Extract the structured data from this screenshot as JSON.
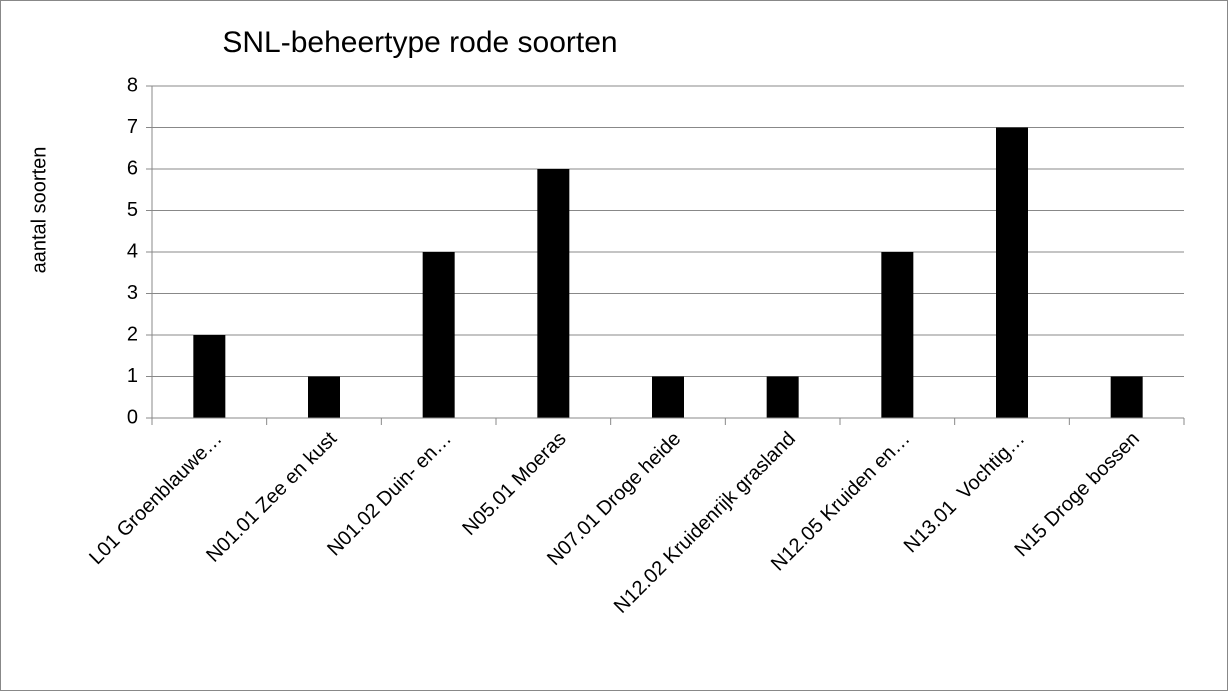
{
  "chart_data": {
    "type": "bar",
    "title": "SNL-beheertype rode soorten",
    "y_label": "aantal soorten",
    "categories": [
      "L01 Groenblauwe…",
      "N01.01 Zee en kust",
      "N01.02 Duin- en…",
      "N05.01 Moeras",
      "N07.01 Droge heide",
      "N12.02 Kruidenrijk grasland",
      "N12.05 Kruiden en…",
      "N13.01  Vochtig…",
      "N15 Droge bossen"
    ],
    "values": [
      2,
      1,
      4,
      6,
      1,
      1,
      4,
      7,
      1
    ],
    "color": "#000000",
    "ylim": [
      0,
      8
    ],
    "yticks": [
      0,
      1,
      2,
      3,
      4,
      5,
      6,
      7,
      8
    ],
    "grid": true
  }
}
